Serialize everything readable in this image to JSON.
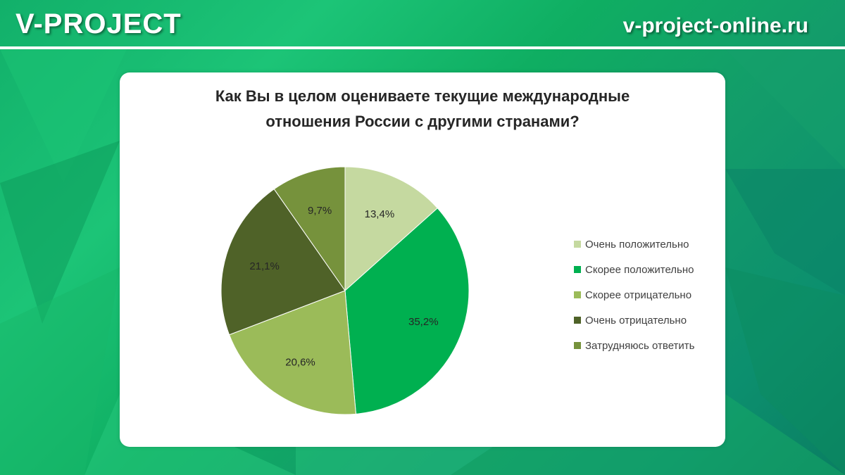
{
  "header": {
    "brand": "V-PROJECT",
    "site": "v-project-online.ru"
  },
  "chart_data": {
    "type": "pie",
    "title_line1": "Как Вы в целом оцениваете текущие международные",
    "title_line2": "отношения России с другими странами?",
    "legend_position": "right",
    "slices": [
      {
        "label": "Очень положительно",
        "value": 13.4,
        "display": "13,4%",
        "color": "#c5d9a0"
      },
      {
        "label": "Скорее положительно",
        "value": 35.2,
        "display": "35,2%",
        "color": "#00b050"
      },
      {
        "label": "Скорее отрицательно",
        "value": 20.6,
        "display": "20,6%",
        "color": "#9bbb59"
      },
      {
        "label": "Очень отрицательно",
        "value": 21.1,
        "display": "21,1%",
        "color": "#4f6228"
      },
      {
        "label": "Затрудняюсь ответить",
        "value": 9.7,
        "display": "9,7%",
        "color": "#76923c"
      }
    ]
  }
}
